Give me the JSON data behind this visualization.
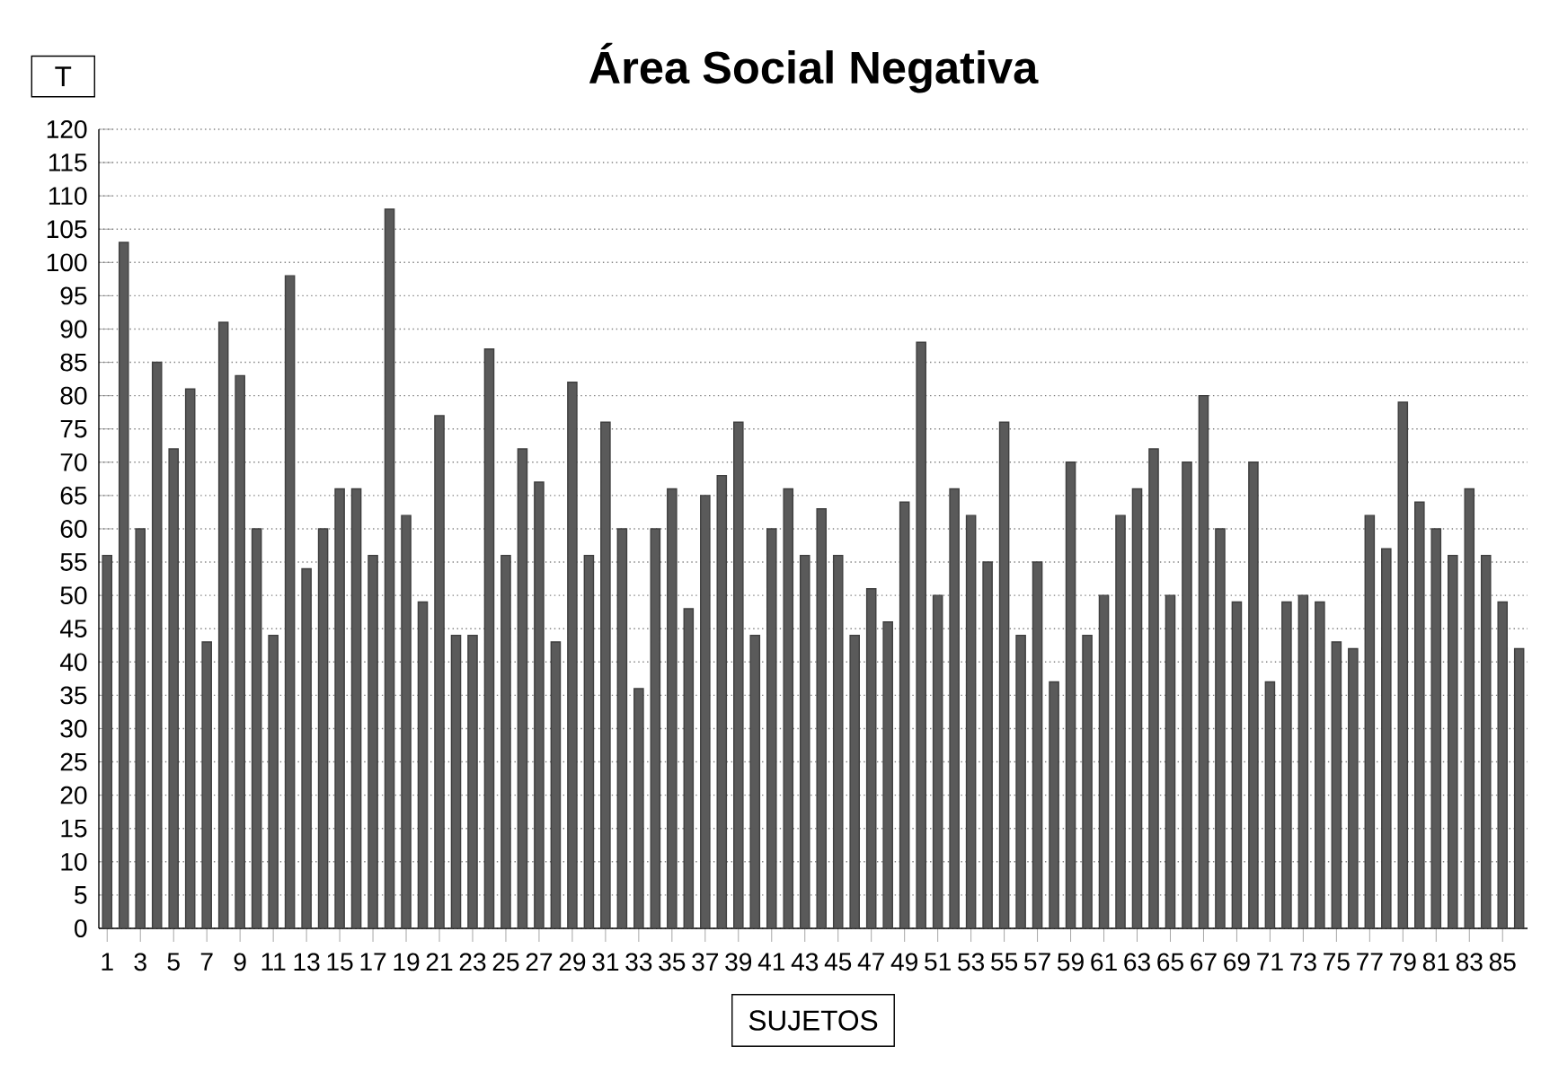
{
  "chart_data": {
    "type": "bar",
    "title": "Área Social Negativa",
    "xlabel": "SUJETOS",
    "ylabel": "T",
    "categories": [
      "1",
      null,
      "3",
      null,
      "5",
      null,
      "7",
      null,
      "9",
      null,
      "11",
      null,
      "13",
      null,
      "15",
      null,
      "17",
      null,
      "19",
      null,
      "21",
      null,
      "23",
      null,
      "25",
      null,
      "27",
      null,
      "29",
      null,
      "31",
      null,
      "33",
      null,
      "35",
      null,
      "37",
      null,
      "39",
      null,
      "41",
      null,
      "43",
      null,
      "45",
      null,
      "47",
      null,
      "49",
      null,
      "51",
      null,
      "53",
      null,
      "55",
      null,
      "57",
      null,
      "59",
      null,
      "61",
      null,
      "63",
      null,
      "65",
      null,
      "67",
      null,
      "69",
      null,
      "71",
      null,
      "73",
      null,
      "75",
      null,
      "77",
      null,
      "79",
      null,
      "81",
      null,
      "83",
      null,
      "85",
      null
    ],
    "values": [
      56,
      103,
      60,
      85,
      72,
      81,
      43,
      91,
      83,
      60,
      44,
      98,
      54,
      60,
      66,
      66,
      56,
      108,
      62,
      49,
      77,
      44,
      44,
      87,
      56,
      72,
      67,
      43,
      82,
      56,
      76,
      60,
      36,
      60,
      66,
      48,
      65,
      68,
      76,
      44,
      60,
      66,
      56,
      63,
      56,
      44,
      51,
      46,
      64,
      88,
      50,
      66,
      62,
      55,
      76,
      44,
      55,
      37,
      70,
      44,
      50,
      62,
      66,
      72,
      50,
      70,
      80,
      60,
      49,
      70,
      37,
      49,
      50,
      49,
      43,
      42,
      62,
      57,
      79,
      64,
      60,
      56,
      66,
      56,
      49,
      42
    ],
    "color": "#5a5a5a",
    "ylim": [
      0,
      120
    ],
    "yticks": [
      0,
      5,
      10,
      15,
      20,
      25,
      30,
      35,
      40,
      45,
      50,
      55,
      60,
      65,
      70,
      75,
      80,
      85,
      90,
      95,
      100,
      105,
      110,
      115,
      120
    ],
    "grid": "y"
  }
}
